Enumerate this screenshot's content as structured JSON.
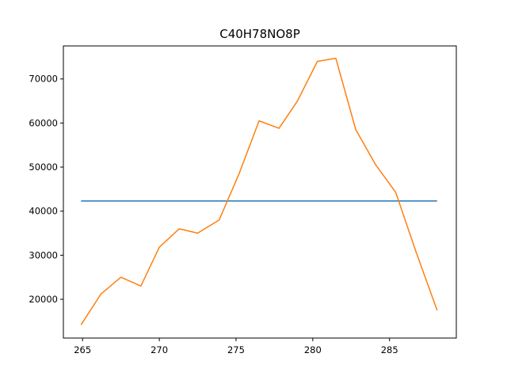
{
  "chart_data": {
    "type": "line",
    "title": "C40H78NO8P",
    "xlabel": "",
    "ylabel": "",
    "xlim": [
      263.75,
      289.35
    ],
    "ylim": [
      11200,
      77500
    ],
    "x_ticks": [
      265,
      270,
      275,
      280,
      285
    ],
    "y_ticks": [
      20000,
      30000,
      40000,
      50000,
      60000,
      70000
    ],
    "x_tick_labels": [
      "265",
      "270",
      "275",
      "280",
      "285"
    ],
    "y_tick_labels": [
      "20000",
      "30000",
      "40000",
      "50000",
      "60000",
      "70000"
    ],
    "grid": false,
    "legend": "none",
    "series": [
      {
        "color": "#1f77b4",
        "x": [
          264.9,
          288.1
        ],
        "y": [
          42300,
          42300
        ]
      },
      {
        "color": "#ff7f0e",
        "x": [
          264.9,
          266.2,
          267.5,
          268.8,
          270.0,
          271.3,
          272.5,
          273.9,
          275.2,
          276.5,
          277.8,
          279.0,
          280.3,
          281.5,
          282.8,
          284.1,
          285.4,
          286.7,
          288.1
        ],
        "y": [
          14200,
          21200,
          25000,
          23000,
          31800,
          36000,
          35000,
          38000,
          48500,
          60500,
          58800,
          65000,
          74000,
          74700,
          58500,
          50500,
          44300,
          31000,
          17500
        ]
      }
    ]
  }
}
